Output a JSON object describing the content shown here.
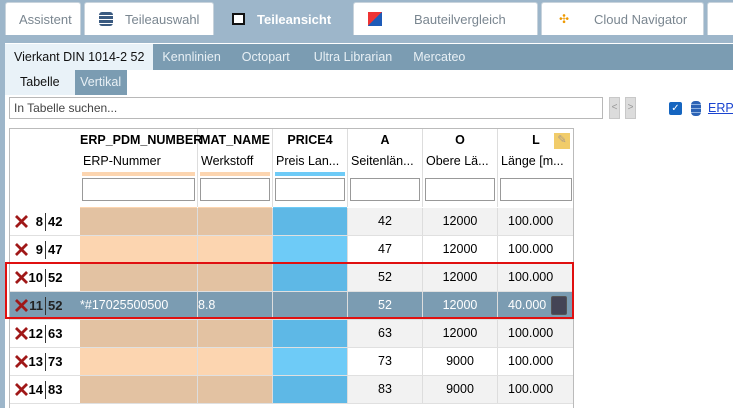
{
  "tabs": [
    {
      "label": "Assistent",
      "icon": "none"
    },
    {
      "label": "Teileauswahl",
      "icon": "stack-icon"
    },
    {
      "label": "Teileansicht",
      "icon": "cubes-icon",
      "active": true
    },
    {
      "label": "Bauteilvergleich",
      "icon": "compare-icon"
    },
    {
      "label": "Cloud Navigator",
      "icon": "network-icon"
    }
  ],
  "subtabs": [
    "Vierkant DIN 1014-2 52",
    "Kennlinien",
    "Octopart",
    "Ultra Librarian",
    "Mercateo"
  ],
  "view_tabs": [
    "Tabelle",
    "Vertikal"
  ],
  "search": {
    "placeholder": "In Tabelle suchen..."
  },
  "erp_link": "ERP-",
  "colors": {
    "erp_col": "#fcd5b0",
    "price_col": "#6ecbf7",
    "selected": "#7b9cb2",
    "highlight_box": "#e01010"
  },
  "columns": [
    {
      "name": "ERP_PDM_NUMBER",
      "label": "ERP-Nummer"
    },
    {
      "name": "MAT_NAME",
      "label": "Werkstoff"
    },
    {
      "name": "PRICE4",
      "label": "Preis Lan..."
    },
    {
      "name": "A",
      "label": "Seitenlän..."
    },
    {
      "name": "O",
      "label": "Obere Lä..."
    },
    {
      "name": "L",
      "label": "Länge [m..."
    }
  ],
  "rows": [
    {
      "n": "8",
      "id": "42",
      "erp": "",
      "mat": "",
      "price": "",
      "a": "42",
      "o": "12000",
      "l": "100.000"
    },
    {
      "n": "9",
      "id": "47",
      "erp": "",
      "mat": "",
      "price": "",
      "a": "47",
      "o": "12000",
      "l": "100.000"
    },
    {
      "n": "10",
      "id": "52",
      "erp": "",
      "mat": "",
      "price": "",
      "a": "52",
      "o": "12000",
      "l": "100.000"
    },
    {
      "n": "11",
      "id": "52",
      "erp": "*#17025500500",
      "mat": "8.8",
      "price": "",
      "a": "52",
      "o": "12000",
      "l": "40.000",
      "selected": true,
      "locked": true
    },
    {
      "n": "12",
      "id": "63",
      "erp": "",
      "mat": "",
      "price": "",
      "a": "63",
      "o": "12000",
      "l": "100.000"
    },
    {
      "n": "13",
      "id": "73",
      "erp": "",
      "mat": "",
      "price": "",
      "a": "73",
      "o": "9000",
      "l": "100.000"
    },
    {
      "n": "14",
      "id": "83",
      "erp": "",
      "mat": "",
      "price": "",
      "a": "83",
      "o": "9000",
      "l": "100.000"
    }
  ]
}
